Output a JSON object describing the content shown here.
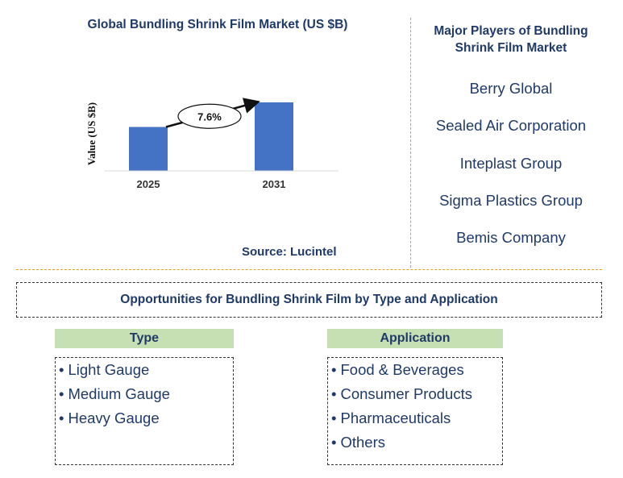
{
  "chart_data": {
    "type": "bar",
    "title": "Global Bundling Shrink Film Market (US $B)",
    "categories": [
      "2025",
      "2031"
    ],
    "values": [
      1.0,
      1.56
    ],
    "ylabel": "Value (US $B)",
    "xlabel": "",
    "cagr_label": "7.6%",
    "bar_color": "#4472c4",
    "grid": false,
    "legend": "none"
  },
  "source": "Source: Lucintel",
  "players": {
    "title": "Major Players of Bundling Shrink Film Market",
    "items": [
      "Berry Global",
      "Sealed Air Corporation",
      "Inteplast Group",
      "Sigma Plastics Group",
      "Bemis Company"
    ]
  },
  "opportunities": {
    "title": "Opportunities for Bundling Shrink Film by Type and Application",
    "type": {
      "header": "Type",
      "items": [
        "Light Gauge",
        "Medium Gauge",
        "Heavy Gauge"
      ]
    },
    "application": {
      "header": "Application",
      "items": [
        "Food & Beverages",
        "Consumer Products",
        "Pharmaceuticals",
        "Others"
      ]
    }
  },
  "colors": {
    "text": "#1f3a68",
    "header_fill": "#c6e0b4",
    "divider": "#e0a21c"
  }
}
